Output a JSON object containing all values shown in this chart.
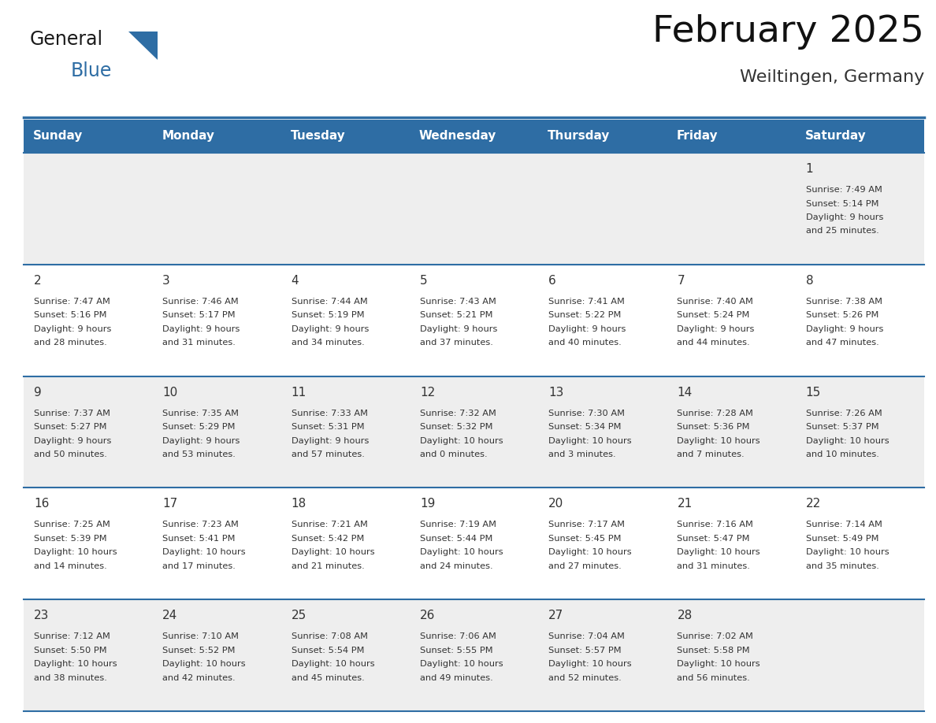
{
  "title": "February 2025",
  "subtitle": "Weiltingen, Germany",
  "days_of_week": [
    "Sunday",
    "Monday",
    "Tuesday",
    "Wednesday",
    "Thursday",
    "Friday",
    "Saturday"
  ],
  "header_bg": "#2E6DA4",
  "header_text_color": "#FFFFFF",
  "cell_bg_light": "#EEEEEE",
  "cell_bg_white": "#FFFFFF",
  "row_line_color": "#2E6DA4",
  "text_color": "#333333",
  "day_number_color": "#333333",
  "logo_text_color": "#1a1a1a",
  "logo_blue_color": "#2E6DA4",
  "calendar_data": [
    [
      null,
      null,
      null,
      null,
      null,
      null,
      {
        "day": 1,
        "sunrise": "7:49 AM",
        "sunset": "5:14 PM",
        "daylight_line1": "Daylight: 9 hours",
        "daylight_line2": "and 25 minutes."
      }
    ],
    [
      {
        "day": 2,
        "sunrise": "7:47 AM",
        "sunset": "5:16 PM",
        "daylight_line1": "Daylight: 9 hours",
        "daylight_line2": "and 28 minutes."
      },
      {
        "day": 3,
        "sunrise": "7:46 AM",
        "sunset": "5:17 PM",
        "daylight_line1": "Daylight: 9 hours",
        "daylight_line2": "and 31 minutes."
      },
      {
        "day": 4,
        "sunrise": "7:44 AM",
        "sunset": "5:19 PM",
        "daylight_line1": "Daylight: 9 hours",
        "daylight_line2": "and 34 minutes."
      },
      {
        "day": 5,
        "sunrise": "7:43 AM",
        "sunset": "5:21 PM",
        "daylight_line1": "Daylight: 9 hours",
        "daylight_line2": "and 37 minutes."
      },
      {
        "day": 6,
        "sunrise": "7:41 AM",
        "sunset": "5:22 PM",
        "daylight_line1": "Daylight: 9 hours",
        "daylight_line2": "and 40 minutes."
      },
      {
        "day": 7,
        "sunrise": "7:40 AM",
        "sunset": "5:24 PM",
        "daylight_line1": "Daylight: 9 hours",
        "daylight_line2": "and 44 minutes."
      },
      {
        "day": 8,
        "sunrise": "7:38 AM",
        "sunset": "5:26 PM",
        "daylight_line1": "Daylight: 9 hours",
        "daylight_line2": "and 47 minutes."
      }
    ],
    [
      {
        "day": 9,
        "sunrise": "7:37 AM",
        "sunset": "5:27 PM",
        "daylight_line1": "Daylight: 9 hours",
        "daylight_line2": "and 50 minutes."
      },
      {
        "day": 10,
        "sunrise": "7:35 AM",
        "sunset": "5:29 PM",
        "daylight_line1": "Daylight: 9 hours",
        "daylight_line2": "and 53 minutes."
      },
      {
        "day": 11,
        "sunrise": "7:33 AM",
        "sunset": "5:31 PM",
        "daylight_line1": "Daylight: 9 hours",
        "daylight_line2": "and 57 minutes."
      },
      {
        "day": 12,
        "sunrise": "7:32 AM",
        "sunset": "5:32 PM",
        "daylight_line1": "Daylight: 10 hours",
        "daylight_line2": "and 0 minutes."
      },
      {
        "day": 13,
        "sunrise": "7:30 AM",
        "sunset": "5:34 PM",
        "daylight_line1": "Daylight: 10 hours",
        "daylight_line2": "and 3 minutes."
      },
      {
        "day": 14,
        "sunrise": "7:28 AM",
        "sunset": "5:36 PM",
        "daylight_line1": "Daylight: 10 hours",
        "daylight_line2": "and 7 minutes."
      },
      {
        "day": 15,
        "sunrise": "7:26 AM",
        "sunset": "5:37 PM",
        "daylight_line1": "Daylight: 10 hours",
        "daylight_line2": "and 10 minutes."
      }
    ],
    [
      {
        "day": 16,
        "sunrise": "7:25 AM",
        "sunset": "5:39 PM",
        "daylight_line1": "Daylight: 10 hours",
        "daylight_line2": "and 14 minutes."
      },
      {
        "day": 17,
        "sunrise": "7:23 AM",
        "sunset": "5:41 PM",
        "daylight_line1": "Daylight: 10 hours",
        "daylight_line2": "and 17 minutes."
      },
      {
        "day": 18,
        "sunrise": "7:21 AM",
        "sunset": "5:42 PM",
        "daylight_line1": "Daylight: 10 hours",
        "daylight_line2": "and 21 minutes."
      },
      {
        "day": 19,
        "sunrise": "7:19 AM",
        "sunset": "5:44 PM",
        "daylight_line1": "Daylight: 10 hours",
        "daylight_line2": "and 24 minutes."
      },
      {
        "day": 20,
        "sunrise": "7:17 AM",
        "sunset": "5:45 PM",
        "daylight_line1": "Daylight: 10 hours",
        "daylight_line2": "and 27 minutes."
      },
      {
        "day": 21,
        "sunrise": "7:16 AM",
        "sunset": "5:47 PM",
        "daylight_line1": "Daylight: 10 hours",
        "daylight_line2": "and 31 minutes."
      },
      {
        "day": 22,
        "sunrise": "7:14 AM",
        "sunset": "5:49 PM",
        "daylight_line1": "Daylight: 10 hours",
        "daylight_line2": "and 35 minutes."
      }
    ],
    [
      {
        "day": 23,
        "sunrise": "7:12 AM",
        "sunset": "5:50 PM",
        "daylight_line1": "Daylight: 10 hours",
        "daylight_line2": "and 38 minutes."
      },
      {
        "day": 24,
        "sunrise": "7:10 AM",
        "sunset": "5:52 PM",
        "daylight_line1": "Daylight: 10 hours",
        "daylight_line2": "and 42 minutes."
      },
      {
        "day": 25,
        "sunrise": "7:08 AM",
        "sunset": "5:54 PM",
        "daylight_line1": "Daylight: 10 hours",
        "daylight_line2": "and 45 minutes."
      },
      {
        "day": 26,
        "sunrise": "7:06 AM",
        "sunset": "5:55 PM",
        "daylight_line1": "Daylight: 10 hours",
        "daylight_line2": "and 49 minutes."
      },
      {
        "day": 27,
        "sunrise": "7:04 AM",
        "sunset": "5:57 PM",
        "daylight_line1": "Daylight: 10 hours",
        "daylight_line2": "and 52 minutes."
      },
      {
        "day": 28,
        "sunrise": "7:02 AM",
        "sunset": "5:58 PM",
        "daylight_line1": "Daylight: 10 hours",
        "daylight_line2": "and 56 minutes."
      },
      null
    ]
  ]
}
